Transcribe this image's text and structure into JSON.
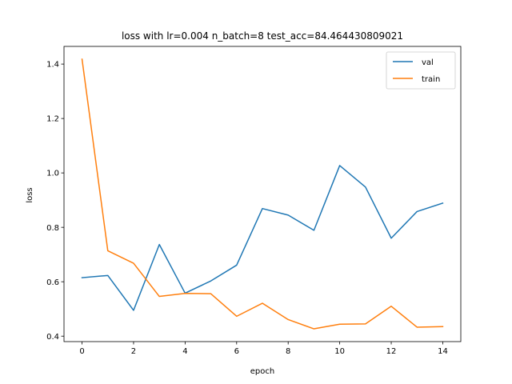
{
  "chart_data": {
    "type": "line",
    "title": "loss with lr=0.004 n_batch=8 test_acc=84.464430809021",
    "xlabel": "epoch",
    "ylabel": "loss",
    "x": [
      0,
      1,
      2,
      3,
      4,
      5,
      6,
      7,
      8,
      9,
      10,
      11,
      12,
      13,
      14
    ],
    "xlim": [
      -0.7,
      14.7
    ],
    "ylim": [
      0.38,
      1.465
    ],
    "xticks": [
      "0",
      "2",
      "4",
      "6",
      "8",
      "10",
      "12",
      "14"
    ],
    "yticks": [
      "0.4",
      "0.6",
      "0.8",
      "1.0",
      "1.2",
      "1.4"
    ],
    "grid": false,
    "legend_position": "top-right",
    "series": [
      {
        "name": "val",
        "color": "#1f77b4",
        "values": [
          0.615,
          0.623,
          0.495,
          0.737,
          0.558,
          0.603,
          0.661,
          0.869,
          0.845,
          0.789,
          1.027,
          0.948,
          0.76,
          0.858,
          0.889
        ]
      },
      {
        "name": "train",
        "color": "#ff7f0e",
        "values": [
          1.418,
          0.714,
          0.668,
          0.546,
          0.557,
          0.556,
          0.473,
          0.521,
          0.461,
          0.427,
          0.444,
          0.445,
          0.51,
          0.433,
          0.435
        ]
      }
    ]
  }
}
